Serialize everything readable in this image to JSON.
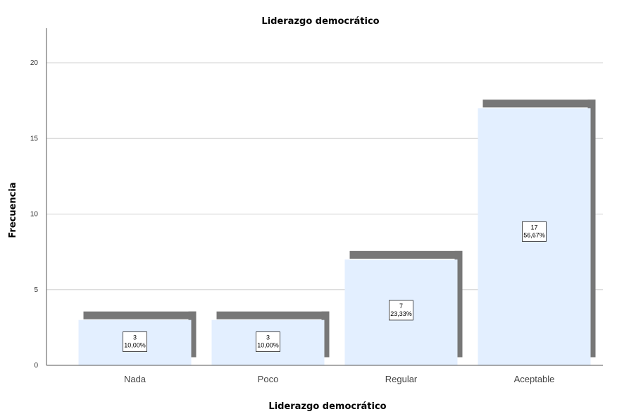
{
  "chart_data": {
    "type": "bar",
    "title": "Liderazgo democrático",
    "xlabel": "Liderazgo democrático",
    "ylabel": "Frecuencia",
    "categories": [
      "Nada",
      "Poco",
      "Regular",
      "Aceptable"
    ],
    "values": [
      3,
      3,
      7,
      17
    ],
    "data_labels": [
      {
        "count": "3",
        "percent": "10,00%"
      },
      {
        "count": "3",
        "percent": "10,00%"
      },
      {
        "count": "7",
        "percent": "23,33%"
      },
      {
        "count": "17",
        "percent": "56,67%"
      }
    ],
    "ylim": [
      0,
      22
    ],
    "yticks": [
      "0",
      "5",
      "10",
      "15",
      "20"
    ],
    "grid": true,
    "colors": {
      "bar_fill": "#e3efff",
      "bar_shadow": "#777777",
      "grid": "#d0d0d0",
      "axis": "#555555"
    }
  }
}
